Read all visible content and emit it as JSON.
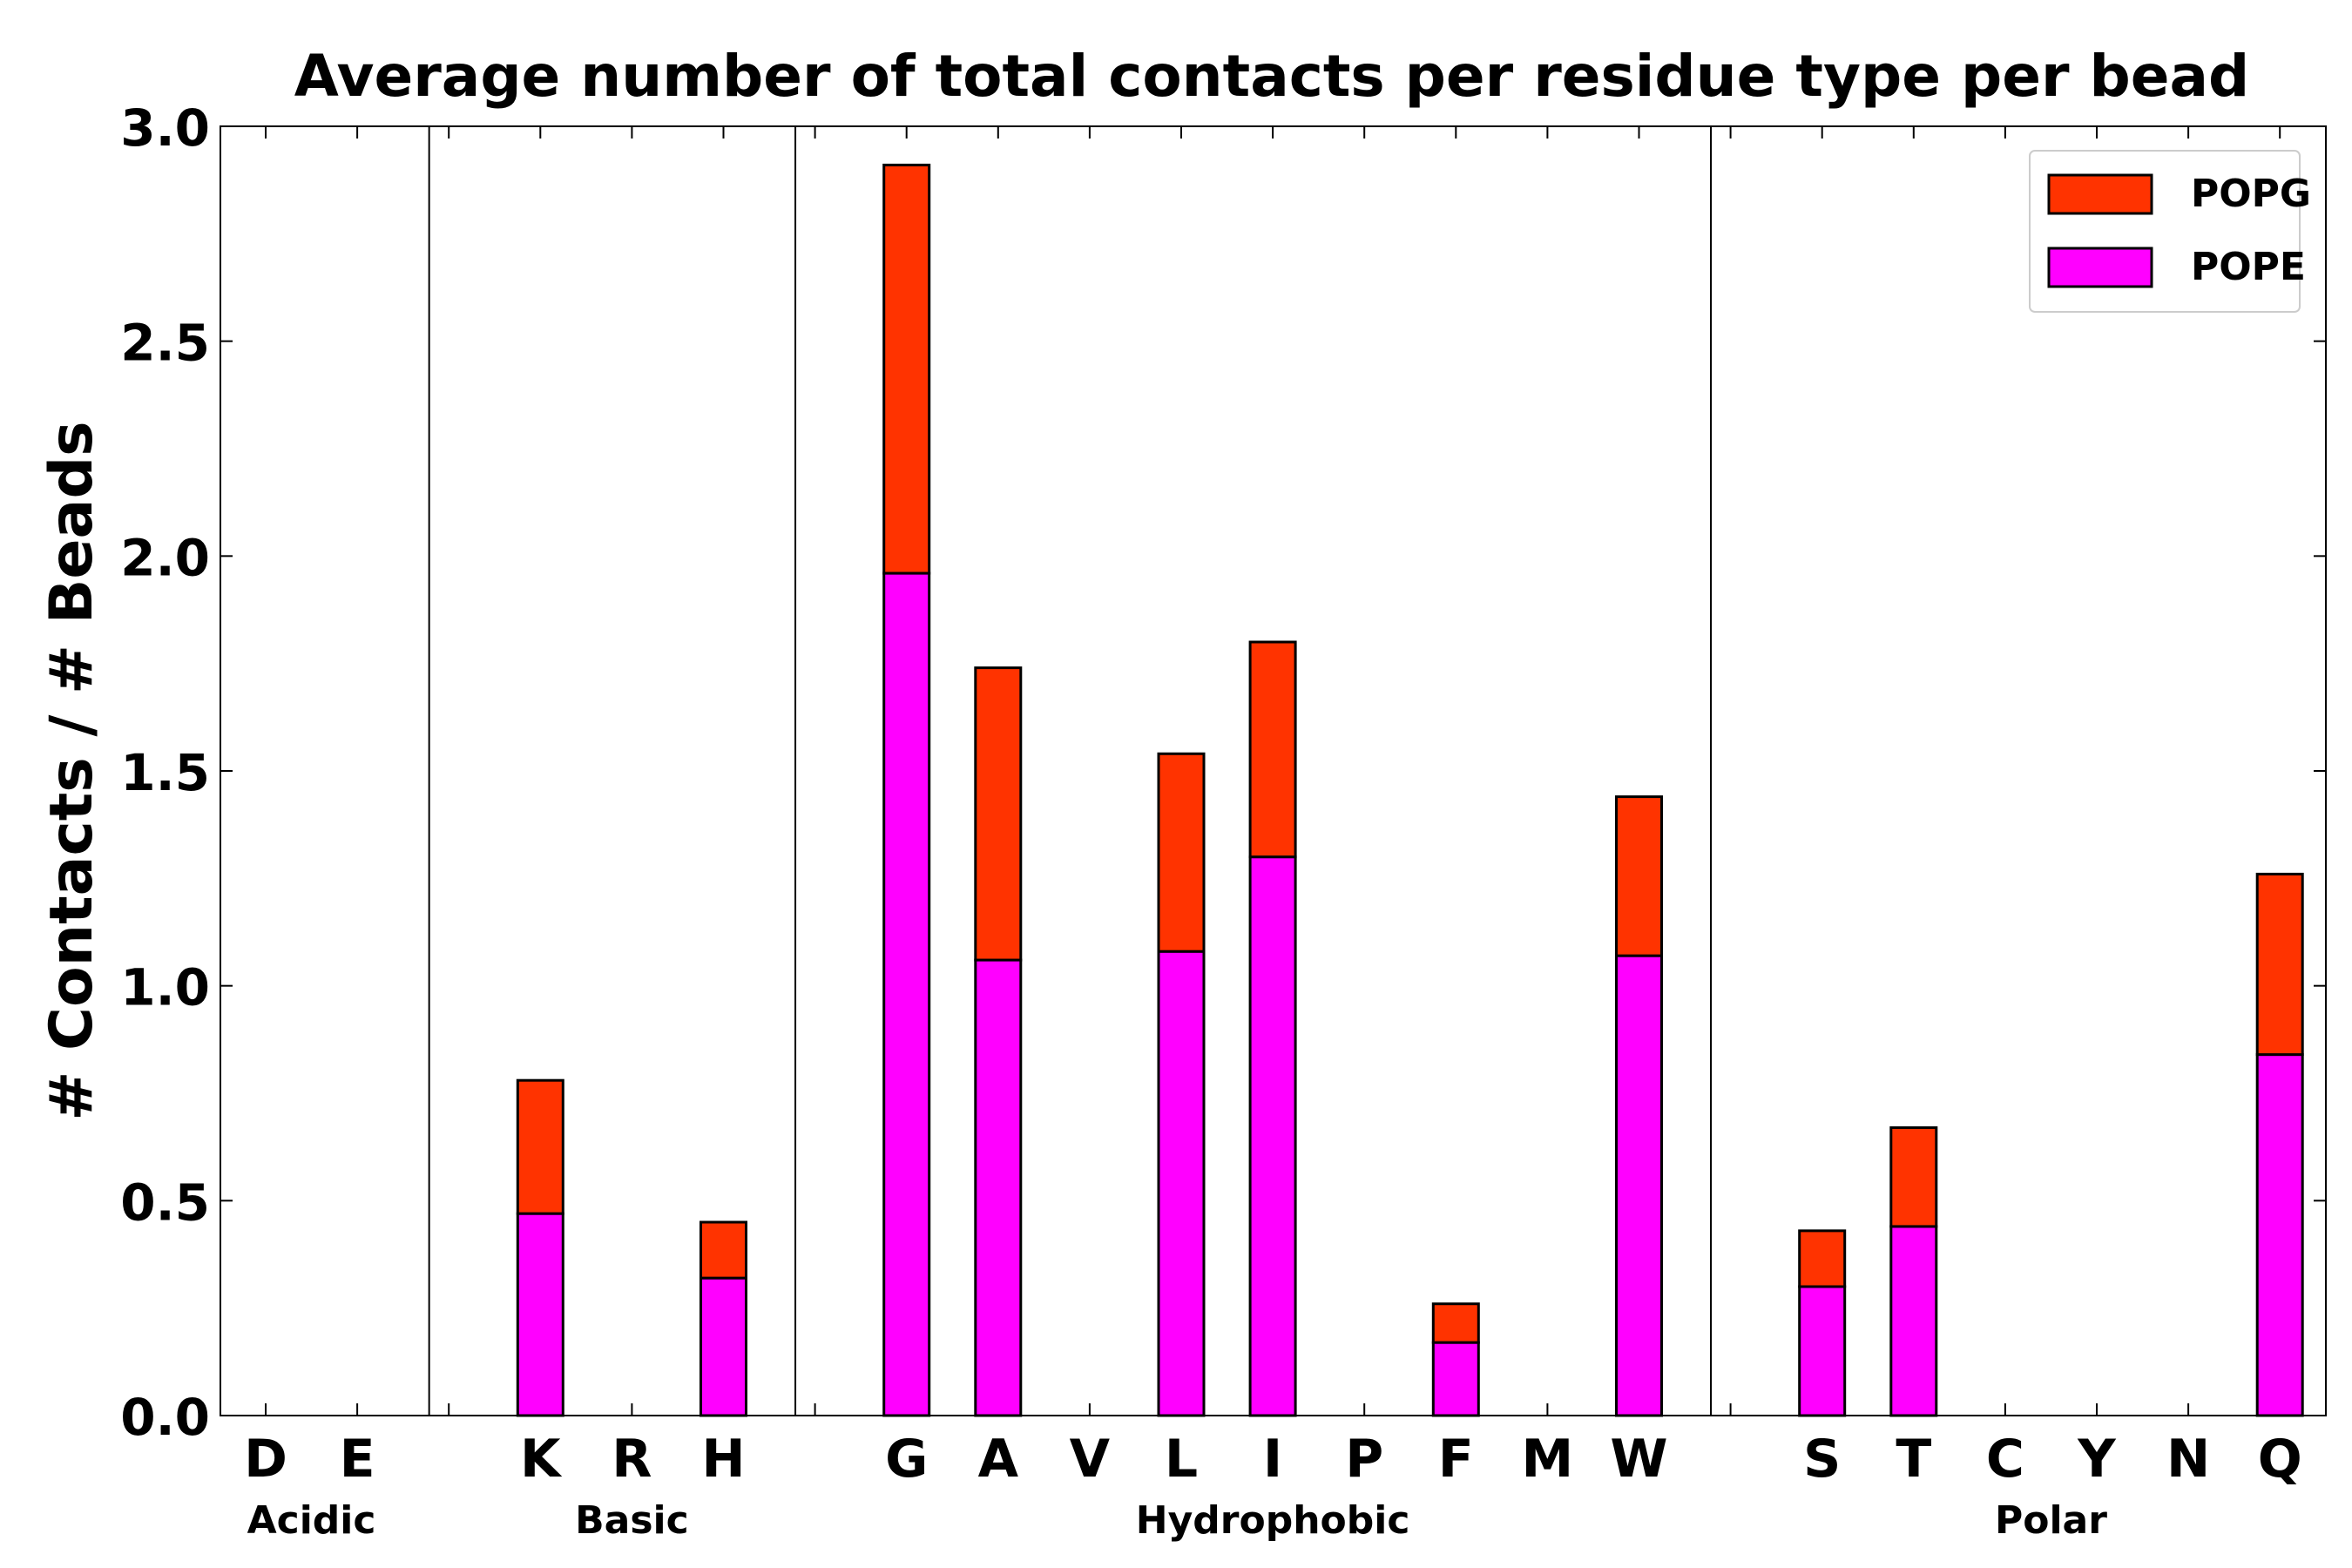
{
  "chart_data": {
    "type": "bar",
    "stacked": true,
    "title": "Average number of total contacts per residue type per bead",
    "xlabel": "",
    "ylabel": "# Contacts / # Beads",
    "ylim": [
      0,
      3.0
    ],
    "yticks": [
      "0.0",
      "0.5",
      "1.0",
      "1.5",
      "2.0",
      "2.5",
      "3.0"
    ],
    "categories": [
      "D",
      "E",
      "",
      "K",
      "R",
      "H",
      "",
      "G",
      "A",
      "V",
      "L",
      "I",
      "P",
      "F",
      "M",
      "W",
      "",
      "S",
      "T",
      "C",
      "Y",
      "N",
      "Q"
    ],
    "groups": [
      {
        "name": "Acidic",
        "start": 0,
        "end": 1
      },
      {
        "name": "Basic",
        "start": 3,
        "end": 5
      },
      {
        "name": "Hydrophobic",
        "start": 7,
        "end": 15
      },
      {
        "name": "Polar",
        "start": 17,
        "end": 22
      }
    ],
    "separators_after": [
      2,
      6,
      16
    ],
    "series": [
      {
        "name": "POPE",
        "color": "#ff00ff",
        "values": [
          0,
          0,
          0,
          0.47,
          0,
          0.32,
          0,
          1.96,
          1.06,
          0,
          1.08,
          1.3,
          0,
          0.17,
          0,
          1.07,
          0,
          0.3,
          0.44,
          0,
          0,
          0,
          0.84
        ]
      },
      {
        "name": "POPG",
        "color": "#ff3300",
        "values": [
          0,
          0,
          0,
          0.31,
          0,
          0.13,
          0,
          0.95,
          0.68,
          0,
          0.46,
          0.5,
          0,
          0.09,
          0,
          0.37,
          0,
          0.13,
          0.23,
          0,
          0,
          0,
          0.42
        ]
      }
    ],
    "legend": {
      "placement": "top-right",
      "order": [
        "POPG",
        "POPE"
      ]
    }
  }
}
